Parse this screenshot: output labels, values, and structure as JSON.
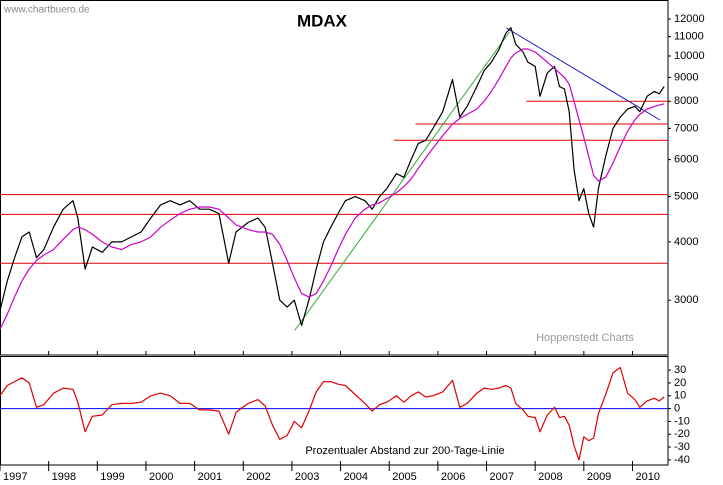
{
  "chart_data": [
    {
      "type": "line",
      "title": "MDAX",
      "watermark": "www.chartbuero.de",
      "credit": "Hoppenstedt Charts",
      "log_scale": true,
      "xlim": [
        1997,
        2010.73
      ],
      "ylim": [
        2290,
        13180
      ],
      "xticks": [
        1997,
        1998,
        1999,
        2000,
        2001,
        2002,
        2003,
        2004,
        2005,
        2006,
        2007,
        2008,
        2009,
        2010
      ],
      "yticks": [
        3000,
        4000,
        5000,
        6000,
        7000,
        8000,
        9000,
        10000,
        11000,
        12000
      ],
      "x": [
        1997.0,
        1997.15,
        1997.3,
        1997.45,
        1997.6,
        1997.75,
        1997.9,
        1998.1,
        1998.3,
        1998.5,
        1998.6,
        1998.75,
        1998.9,
        1999.1,
        1999.3,
        1999.5,
        1999.7,
        1999.9,
        2000.1,
        2000.3,
        2000.5,
        2000.7,
        2000.9,
        2001.1,
        2001.3,
        2001.5,
        2001.7,
        2001.85,
        2002.1,
        2002.3,
        2002.45,
        2002.6,
        2002.75,
        2002.9,
        2003.05,
        2003.2,
        2003.35,
        2003.5,
        2003.65,
        2003.8,
        2003.95,
        2004.1,
        2004.3,
        2004.5,
        2004.65,
        2004.8,
        2004.95,
        2005.15,
        2005.3,
        2005.45,
        2005.6,
        2005.75,
        2005.9,
        2006.1,
        2006.3,
        2006.45,
        2006.6,
        2006.8,
        2006.95,
        2007.1,
        2007.25,
        2007.4,
        2007.5,
        2007.6,
        2007.75,
        2007.85,
        2008.0,
        2008.1,
        2008.25,
        2008.4,
        2008.5,
        2008.6,
        2008.7,
        2008.8,
        2008.9,
        2009.0,
        2009.1,
        2009.2,
        2009.3,
        2009.45,
        2009.6,
        2009.75,
        2009.9,
        2010.05,
        2010.15,
        2010.3,
        2010.45,
        2010.55,
        2010.65
      ],
      "series": [
        {
          "name": "MDAX",
          "color": "#000000",
          "values": [
            2850,
            3300,
            3700,
            4100,
            4200,
            3700,
            3850,
            4300,
            4700,
            4900,
            4500,
            3500,
            3900,
            3800,
            4000,
            4000,
            4100,
            4200,
            4500,
            4800,
            4900,
            4800,
            4900,
            4700,
            4700,
            4600,
            3600,
            4200,
            4400,
            4500,
            4300,
            3600,
            3000,
            2900,
            3000,
            2650,
            3000,
            3500,
            4000,
            4300,
            4600,
            4900,
            5000,
            4900,
            4700,
            5000,
            5200,
            5600,
            5500,
            6000,
            6500,
            6600,
            7000,
            7600,
            8900,
            7400,
            7800,
            8600,
            9300,
            9700,
            10300,
            11200,
            11500,
            10600,
            10200,
            9700,
            9500,
            8200,
            9200,
            9500,
            8600,
            8500,
            7600,
            5700,
            4900,
            5200,
            4600,
            4300,
            5200,
            6100,
            7000,
            7400,
            7700,
            7800,
            7600,
            8200,
            8400,
            8300,
            8600
          ]
        },
        {
          "name": "200-Tage-Linie",
          "color": "#cc00cc",
          "values": [
            2600,
            2800,
            3050,
            3300,
            3500,
            3650,
            3750,
            3850,
            4050,
            4250,
            4300,
            4250,
            4150,
            4000,
            3900,
            3850,
            3950,
            4000,
            4100,
            4300,
            4450,
            4600,
            4700,
            4750,
            4750,
            4700,
            4500,
            4350,
            4250,
            4200,
            4200,
            4150,
            3950,
            3650,
            3350,
            3100,
            3050,
            3100,
            3300,
            3550,
            3850,
            4150,
            4500,
            4700,
            4800,
            4850,
            4950,
            5100,
            5250,
            5450,
            5750,
            6050,
            6350,
            6750,
            7150,
            7350,
            7500,
            7700,
            8000,
            8400,
            8900,
            9500,
            9900,
            10150,
            10350,
            10350,
            10200,
            10000,
            9700,
            9400,
            9200,
            9000,
            8700,
            8000,
            7300,
            6700,
            6100,
            5550,
            5400,
            5500,
            5900,
            6400,
            6900,
            7300,
            7500,
            7700,
            7800,
            7850,
            7900
          ]
        }
      ],
      "reference_lines": [
        {
          "y": 5050,
          "color": "#e00000"
        },
        {
          "y": 4580,
          "color": "#e00000"
        },
        {
          "y": 3600,
          "color": "#e00000"
        },
        {
          "y": 8000,
          "x_start": 2007.82,
          "color": "#e00000"
        },
        {
          "y": 7150,
          "x_start": 2005.54,
          "color": "#e00000"
        },
        {
          "y": 6600,
          "x_start": 2005.1,
          "color": "#e00000"
        }
      ],
      "trend_lines": [
        {
          "x": [
            2003.06,
            2007.47
          ],
          "y": [
            2587,
            11256
          ],
          "color": "#33aa33"
        },
        {
          "x": [
            2007.41,
            2010.57
          ],
          "y": [
            11480,
            7290
          ],
          "color": "#2222cc"
        }
      ]
    },
    {
      "type": "line",
      "title": "Prozentualer Abstand zur 200-Tage-Linie",
      "xlim": [
        1997,
        2010.73
      ],
      "ylim": [
        -44,
        41
      ],
      "xticks": [
        1997,
        1998,
        1999,
        2000,
        2001,
        2002,
        2003,
        2004,
        2005,
        2006,
        2007,
        2008,
        2009,
        2010
      ],
      "yticks": [
        30,
        20,
        10,
        0,
        -10,
        -20,
        -30,
        -40
      ],
      "x": [
        1997.0,
        1997.15,
        1997.3,
        1997.45,
        1997.6,
        1997.75,
        1997.9,
        1998.1,
        1998.3,
        1998.5,
        1998.6,
        1998.75,
        1998.9,
        1999.1,
        1999.3,
        1999.5,
        1999.7,
        1999.9,
        2000.1,
        2000.3,
        2000.5,
        2000.7,
        2000.9,
        2001.1,
        2001.3,
        2001.5,
        2001.7,
        2001.85,
        2002.1,
        2002.3,
        2002.45,
        2002.6,
        2002.75,
        2002.9,
        2003.05,
        2003.2,
        2003.35,
        2003.5,
        2003.65,
        2003.8,
        2003.95,
        2004.1,
        2004.3,
        2004.5,
        2004.65,
        2004.8,
        2004.95,
        2005.15,
        2005.3,
        2005.45,
        2005.6,
        2005.75,
        2005.9,
        2006.1,
        2006.3,
        2006.45,
        2006.6,
        2006.8,
        2006.95,
        2007.1,
        2007.25,
        2007.4,
        2007.5,
        2007.6,
        2007.75,
        2007.85,
        2008.0,
        2008.1,
        2008.25,
        2008.4,
        2008.5,
        2008.6,
        2008.7,
        2008.8,
        2008.9,
        2009.0,
        2009.1,
        2009.2,
        2009.3,
        2009.45,
        2009.6,
        2009.75,
        2009.9,
        2010.05,
        2010.15,
        2010.3,
        2010.45,
        2010.55,
        2010.65
      ],
      "series": [
        {
          "name": "Abstand",
          "color": "#e00000",
          "values": [
            10,
            18,
            21,
            24,
            20,
            1,
            3,
            12,
            16,
            15,
            5,
            -18,
            -6,
            -5,
            3,
            4,
            4,
            5,
            10,
            12,
            10,
            4,
            4,
            -1,
            -1,
            -2,
            -20,
            -3,
            4,
            7,
            2,
            -13,
            -24,
            -21,
            -10,
            -15,
            -2,
            13,
            21,
            21,
            19,
            18,
            11,
            4,
            -2,
            3,
            5,
            10,
            5,
            10,
            13,
            9,
            10,
            13,
            22,
            1,
            4,
            12,
            16,
            15,
            16,
            18,
            16,
            4,
            -1,
            -6,
            -7,
            -18,
            -5,
            1,
            -7,
            -6,
            -13,
            -29,
            -40,
            -22,
            -25,
            -23,
            -4,
            11,
            28,
            32,
            12,
            7,
            1,
            6,
            8,
            6,
            9
          ]
        }
      ],
      "reference_lines": [
        {
          "y": 0,
          "color": "#0000ff"
        }
      ]
    }
  ]
}
